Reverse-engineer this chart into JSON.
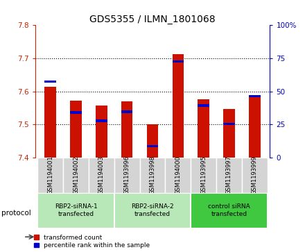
{
  "title": "GDS5355 / ILMN_1801068",
  "categories": [
    "GSM1194001",
    "GSM1194002",
    "GSM1194003",
    "GSM1193996",
    "GSM1193998",
    "GSM1194000",
    "GSM1193995",
    "GSM1193997",
    "GSM1193999"
  ],
  "red_values": [
    7.613,
    7.572,
    7.557,
    7.57,
    7.5,
    7.712,
    7.577,
    7.546,
    7.587
  ],
  "blue_values": [
    7.63,
    7.536,
    7.511,
    7.538,
    7.435,
    7.69,
    7.557,
    7.502,
    7.585
  ],
  "y_min": 7.4,
  "y_max": 7.8,
  "y_ticks_left": [
    7.4,
    7.5,
    7.6,
    7.7,
    7.8
  ],
  "y_ticks_right": [
    0,
    25,
    50,
    75,
    100
  ],
  "groups": [
    {
      "label": "RBP2-siRNA-1\ntransfected",
      "start": 0,
      "end": 3,
      "color": "#b8e8b8"
    },
    {
      "label": "RBP2-siRNA-2\ntransfected",
      "start": 3,
      "end": 6,
      "color": "#b8e8b8"
    },
    {
      "label": "control siRNA\ntransfected",
      "start": 6,
      "end": 9,
      "color": "#40c840"
    }
  ],
  "protocol_label": "protocol",
  "bar_width": 0.45,
  "bar_color_red": "#cc1100",
  "bar_color_blue": "#0000cc",
  "bg_color": "#ffffff",
  "plot_bg_color": "#ffffff",
  "left_axis_color": "#cc2200",
  "right_axis_color": "#0000bb",
  "legend_red": "transformed count",
  "legend_blue": "percentile rank within the sample",
  "title_fontsize": 10,
  "tick_fontsize": 7.5,
  "label_fontsize": 7
}
